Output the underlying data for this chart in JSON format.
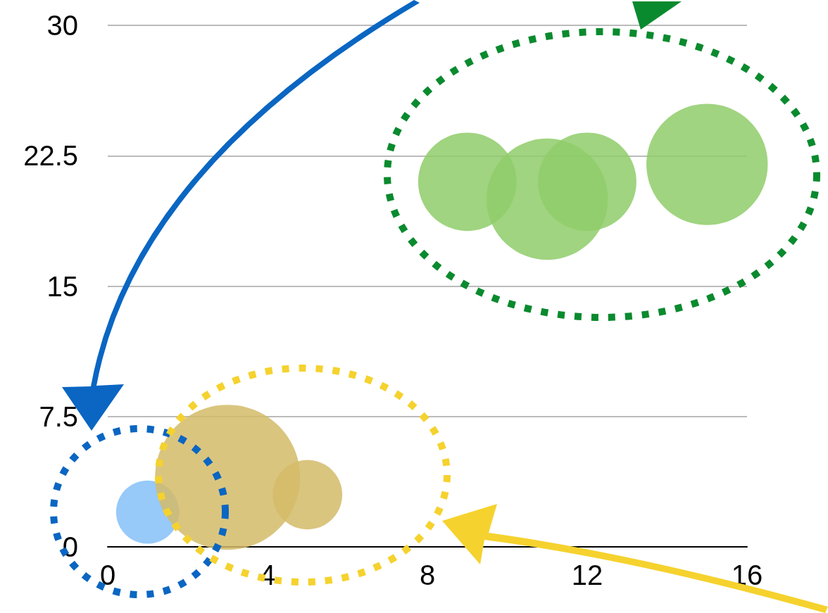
{
  "chart_data": {
    "type": "bubble",
    "xlim": [
      0,
      16
    ],
    "xticks": [
      0,
      4,
      8,
      12,
      16
    ],
    "ylim": [
      0,
      30
    ],
    "yticks": [
      0,
      7.5,
      15,
      22.5,
      30
    ],
    "grid": "y",
    "series": [
      {
        "color": "#85c0f8",
        "x": [
          1
        ],
        "values": [
          2
        ],
        "sizes": [
          0.19
        ]
      },
      {
        "color": "#d4bb68",
        "x": [
          3,
          5
        ],
        "values": [
          4,
          3
        ],
        "sizes": [
          1,
          0.23
        ]
      },
      {
        "color": "#8fcc6a",
        "x": [
          9,
          11,
          12,
          15
        ],
        "values": [
          21,
          20,
          21,
          22
        ],
        "sizes": [
          0.46,
          0.7,
          0.46,
          0.7
        ]
      }
    ]
  }
}
